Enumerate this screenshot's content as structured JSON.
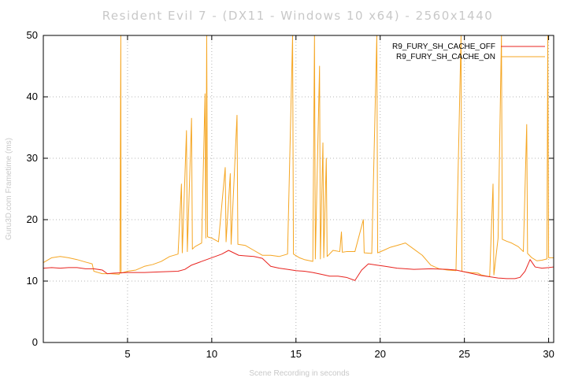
{
  "chart_data": {
    "type": "line",
    "title": "Resident Evil 7 - (DX11 - Windows 10 x64) - 2560x1440",
    "xlabel": "Scene Recording in seconds",
    "ylabel": "Guru3D.com Frametime (ms)",
    "xlim": [
      0,
      30.3
    ],
    "ylim": [
      0,
      50
    ],
    "xticks": [
      5,
      10,
      15,
      20,
      25,
      30
    ],
    "yticks": [
      0,
      10,
      20,
      30,
      40,
      50
    ],
    "grid": true,
    "legend_position": "top-right",
    "colors": {
      "off": "#e8231f",
      "on": "#f5a623",
      "grid": "#b4b4b4",
      "axis": "#000000"
    },
    "series": [
      {
        "name": "R9_FURY_SH_CACHE_OFF",
        "color": "#e8231f",
        "points": [
          [
            0,
            12.1
          ],
          [
            0.5,
            12.2
          ],
          [
            1.0,
            12.1
          ],
          [
            1.5,
            12.2
          ],
          [
            2.0,
            12.2
          ],
          [
            2.5,
            12.0
          ],
          [
            3.0,
            12.0
          ],
          [
            3.5,
            11.8
          ],
          [
            3.8,
            11.2
          ],
          [
            4.2,
            11.3
          ],
          [
            5.0,
            11.4
          ],
          [
            6.0,
            11.4
          ],
          [
            7.0,
            11.5
          ],
          [
            8.0,
            11.6
          ],
          [
            8.4,
            11.9
          ],
          [
            8.8,
            12.6
          ],
          [
            9.2,
            13.0
          ],
          [
            9.7,
            13.5
          ],
          [
            10.2,
            14.0
          ],
          [
            10.6,
            14.4
          ],
          [
            11.0,
            15.0
          ],
          [
            11.3,
            14.6
          ],
          [
            11.6,
            14.2
          ],
          [
            12.0,
            14.1
          ],
          [
            12.5,
            14.0
          ],
          [
            13.0,
            13.7
          ],
          [
            13.5,
            12.4
          ],
          [
            14.0,
            12.1
          ],
          [
            14.5,
            11.9
          ],
          [
            15.0,
            11.7
          ],
          [
            15.5,
            11.6
          ],
          [
            16.0,
            11.4
          ],
          [
            16.5,
            11.1
          ],
          [
            17.0,
            10.8
          ],
          [
            17.5,
            10.8
          ],
          [
            18.0,
            10.6
          ],
          [
            18.5,
            10.1
          ],
          [
            18.9,
            11.8
          ],
          [
            19.3,
            12.8
          ],
          [
            19.8,
            12.6
          ],
          [
            20.3,
            12.4
          ],
          [
            21.0,
            12.1
          ],
          [
            22.0,
            11.9
          ],
          [
            23.0,
            12.0
          ],
          [
            24.0,
            11.9
          ],
          [
            24.5,
            11.8
          ],
          [
            25.0,
            11.5
          ],
          [
            25.5,
            11.2
          ],
          [
            26.0,
            10.9
          ],
          [
            26.5,
            10.7
          ],
          [
            27.0,
            10.5
          ],
          [
            27.5,
            10.4
          ],
          [
            28.0,
            10.4
          ],
          [
            28.3,
            10.6
          ],
          [
            28.6,
            11.6
          ],
          [
            28.9,
            13.5
          ],
          [
            29.2,
            12.3
          ],
          [
            29.6,
            12.1
          ],
          [
            30.0,
            12.2
          ],
          [
            30.3,
            12.3
          ]
        ]
      },
      {
        "name": "R9_FURY_SH_CACHE_ON",
        "color": "#f5a623",
        "points": [
          [
            0,
            13.0
          ],
          [
            0.5,
            13.8
          ],
          [
            1.0,
            14.0
          ],
          [
            1.5,
            13.8
          ],
          [
            2.0,
            13.5
          ],
          [
            2.5,
            13.1
          ],
          [
            2.9,
            12.8
          ],
          [
            3.0,
            11.6
          ],
          [
            3.5,
            11.2
          ],
          [
            4.0,
            11.2
          ],
          [
            4.5,
            11.1
          ],
          [
            4.55,
            11.3
          ],
          [
            4.6,
            50
          ],
          [
            4.62,
            11.3
          ],
          [
            5.0,
            11.6
          ],
          [
            5.5,
            11.8
          ],
          [
            6.0,
            12.4
          ],
          [
            6.5,
            12.7
          ],
          [
            7.0,
            13.2
          ],
          [
            7.5,
            14.0
          ],
          [
            8.0,
            14.4
          ],
          [
            8.2,
            25.8
          ],
          [
            8.25,
            14.6
          ],
          [
            8.5,
            34.5
          ],
          [
            8.55,
            14.8
          ],
          [
            8.8,
            36.5
          ],
          [
            8.85,
            15.2
          ],
          [
            9.0,
            15.6
          ],
          [
            9.4,
            16.2
          ],
          [
            9.6,
            40.5
          ],
          [
            9.65,
            17.0
          ],
          [
            9.7,
            50
          ],
          [
            9.75,
            17.2
          ],
          [
            10.0,
            17.0
          ],
          [
            10.4,
            16.4
          ],
          [
            10.8,
            28.5
          ],
          [
            10.85,
            16.4
          ],
          [
            11.1,
            27.5
          ],
          [
            11.15,
            16.0
          ],
          [
            11.5,
            37.0
          ],
          [
            11.55,
            16.0
          ],
          [
            12.0,
            15.8
          ],
          [
            12.5,
            15.0
          ],
          [
            13.0,
            14.2
          ],
          [
            13.5,
            14.2
          ],
          [
            14.0,
            14.0
          ],
          [
            14.5,
            14.4
          ],
          [
            14.8,
            50
          ],
          [
            14.85,
            14.4
          ],
          [
            15.2,
            13.8
          ],
          [
            15.5,
            13.5
          ],
          [
            16.0,
            13.2
          ],
          [
            16.1,
            50
          ],
          [
            16.15,
            13.6
          ],
          [
            16.4,
            45.0
          ],
          [
            16.45,
            13.6
          ],
          [
            16.6,
            32.5
          ],
          [
            16.65,
            13.8
          ],
          [
            16.8,
            30.0
          ],
          [
            16.85,
            14.0
          ],
          [
            17.2,
            15.0
          ],
          [
            17.6,
            14.8
          ],
          [
            17.7,
            18.0
          ],
          [
            17.75,
            14.7
          ],
          [
            18.0,
            14.8
          ],
          [
            18.5,
            14.8
          ],
          [
            19.0,
            20.0
          ],
          [
            19.05,
            14.6
          ],
          [
            19.5,
            14.5
          ],
          [
            19.8,
            50
          ],
          [
            19.85,
            14.6
          ],
          [
            20.2,
            15.0
          ],
          [
            20.6,
            15.5
          ],
          [
            21.0,
            15.8
          ],
          [
            21.5,
            16.2
          ],
          [
            22.0,
            15.2
          ],
          [
            22.5,
            14.2
          ],
          [
            23.0,
            12.6
          ],
          [
            23.5,
            12.0
          ],
          [
            24.0,
            11.8
          ],
          [
            24.5,
            11.7
          ],
          [
            24.8,
            50
          ],
          [
            24.85,
            11.6
          ],
          [
            25.0,
            11.5
          ],
          [
            25.3,
            11.4
          ],
          [
            25.8,
            11.3
          ],
          [
            26.0,
            11.0
          ],
          [
            26.5,
            10.7
          ],
          [
            26.7,
            25.8
          ],
          [
            26.75,
            11.0
          ],
          [
            27.0,
            17.0
          ],
          [
            27.2,
            50
          ],
          [
            27.25,
            16.8
          ],
          [
            27.5,
            16.5
          ],
          [
            27.8,
            16.2
          ],
          [
            28.2,
            15.6
          ],
          [
            28.5,
            14.8
          ],
          [
            28.7,
            35.5
          ],
          [
            28.75,
            14.5
          ],
          [
            29.0,
            13.8
          ],
          [
            29.3,
            13.3
          ],
          [
            29.6,
            13.4
          ],
          [
            29.9,
            13.6
          ],
          [
            29.95,
            50
          ],
          [
            30.0,
            13.8
          ],
          [
            30.3,
            13.8
          ]
        ]
      }
    ]
  }
}
